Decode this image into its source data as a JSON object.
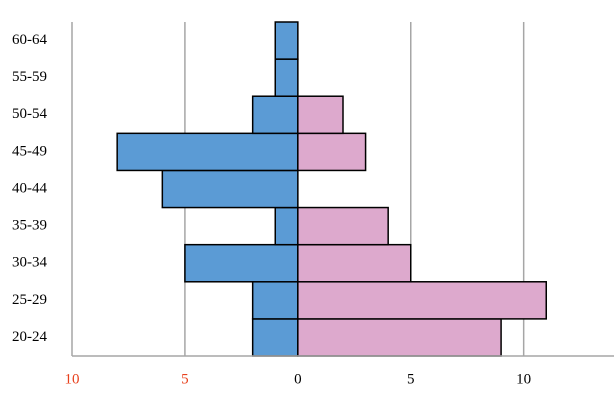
{
  "chart_data": {
    "type": "bar",
    "orientation": "horizontal",
    "stacked": false,
    "categories": [
      "20-24",
      "25-29",
      "30-34",
      "35-39",
      "40-44",
      "45-49",
      "50-54",
      "55-59",
      "60-64"
    ],
    "series": [
      {
        "color": "#5b9bd5",
        "values": [
          -2,
          -2,
          -5,
          -1,
          -6,
          -8,
          -2,
          -1,
          -1
        ]
      },
      {
        "color": "#dda9cd",
        "values": [
          9,
          11,
          5,
          4,
          0,
          3,
          2,
          0,
          0
        ]
      }
    ],
    "xlim": [
      -10,
      14
    ],
    "xticks": [
      {
        "value": -10,
        "label": "10"
      },
      {
        "value": -5,
        "label": "5"
      },
      0,
      5,
      10
    ],
    "negative_tick_color": "#e8401c",
    "grid": true
  }
}
